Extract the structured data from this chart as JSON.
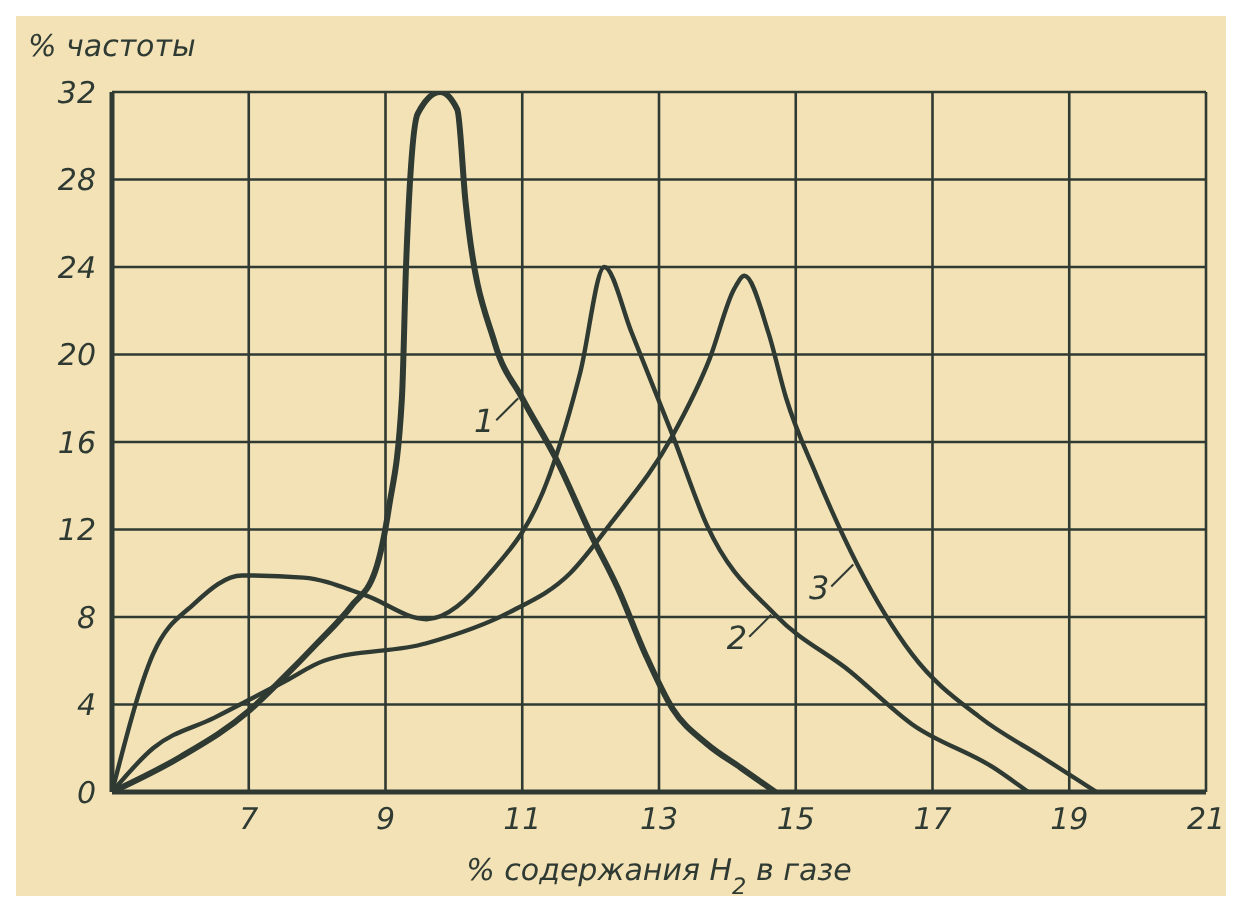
{
  "chart_data": {
    "type": "line",
    "xlabel": "% содержания H$_{2}$ в газе",
    "ylabel": "% частоты",
    "xlim": [
      5,
      21
    ],
    "xticks": [
      {
        "value": 5,
        "label": null
      },
      7,
      9,
      11,
      13,
      15,
      17,
      19,
      21
    ],
    "ylim": [
      0,
      32
    ],
    "yticks": [
      0,
      4,
      8,
      12,
      16,
      20,
      24,
      28,
      32
    ],
    "grid": true,
    "legend": "center",
    "marker": "none",
    "line_style": "solid",
    "series": [
      {
        "name": "1",
        "color": "#2f3a33",
        "x": [
          5,
          6,
          7,
          7.5,
          8,
          8.5,
          8.85,
          9.05,
          9.24,
          9.3,
          9.47,
          9.8,
          10.05,
          10.17,
          10.6,
          11,
          11.5,
          12,
          12.4,
          12.8,
          13.2,
          13.7,
          14.2,
          14.7
        ],
        "values": [
          0,
          1.6,
          3.7,
          5.2,
          6.8,
          8.5,
          10.1,
          13,
          18,
          24,
          31,
          32,
          31.2,
          27,
          20.5,
          18,
          15.2,
          11.8,
          9.3,
          6.3,
          3.8,
          2.2,
          1.1,
          0
        ]
      },
      {
        "name": "2",
        "color": "#2f3a33",
        "x": [
          5,
          5.6,
          6.2,
          6.9,
          7.8,
          8.7,
          9.6,
          10.5,
          11.4,
          11.85,
          12.2,
          12.6,
          13.2,
          13.7,
          14.7,
          15.8,
          16.7,
          17.9,
          18.4
        ],
        "values": [
          0,
          6.3,
          8.6,
          9.9,
          9.8,
          9,
          7.9,
          9.9,
          14.5,
          19.2,
          24,
          21,
          16.3,
          12.2,
          8.1,
          5.5,
          3.1,
          1.1,
          0
        ]
      },
      {
        "name": "3",
        "color": "#2f3a33",
        "x": [
          5,
          5.6,
          6.5,
          7.55,
          8.1,
          9.6,
          10.8,
          11.7,
          12.3,
          13.2,
          13.74,
          14.1,
          14.25,
          14.6,
          14.86,
          15.3,
          15.9,
          16.7,
          17.7,
          18.6,
          19.4
        ],
        "values": [
          0,
          2,
          3.4,
          5.1,
          6,
          6.8,
          8.2,
          10,
          12.3,
          16.3,
          19.8,
          23,
          23.6,
          21,
          18,
          14.5,
          10.4,
          6.3,
          3.4,
          1.6,
          0
        ]
      }
    ]
  }
}
